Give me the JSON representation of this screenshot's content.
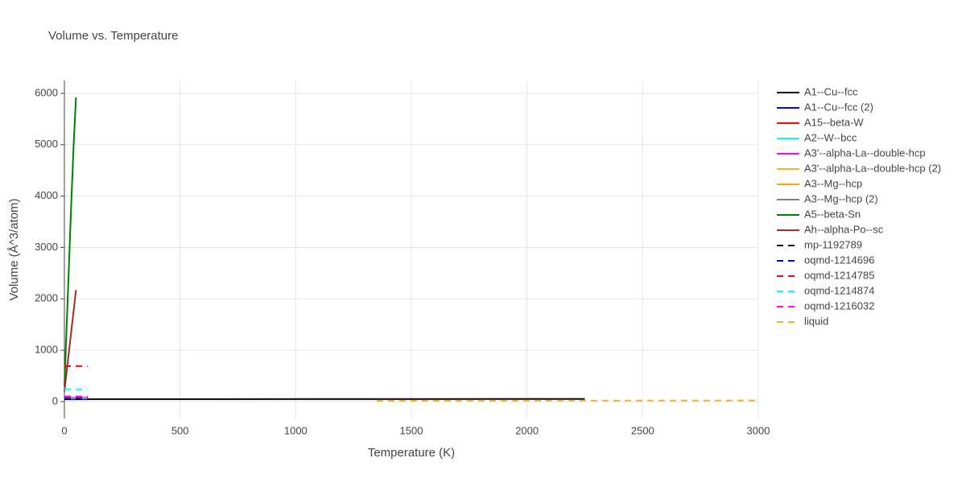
{
  "chart_data": {
    "type": "line",
    "title": "Volume vs. Temperature",
    "xlabel": "Temperature (K)",
    "ylabel": "Volume (Å^3/atom)",
    "xlim": [
      0,
      3000
    ],
    "xticks": [
      0,
      500,
      1000,
      1500,
      2000,
      2500,
      3000
    ],
    "ylim": [
      -330,
      6250
    ],
    "yticks": [
      0,
      1000,
      2000,
      3000,
      4000,
      5000,
      6000
    ],
    "grid": true,
    "legend": "right",
    "series": [
      {
        "name": "A1--Cu--fcc",
        "color": "#000000",
        "dash": false,
        "x": [
          0,
          2250
        ],
        "values": [
          47,
          52
        ]
      },
      {
        "name": "A1--Cu--fcc (2)",
        "color": "#0000ff",
        "dash": false,
        "x": [
          0,
          100
        ],
        "values": [
          45,
          46
        ]
      },
      {
        "name": "A15--beta-W",
        "color": "#ff0000",
        "dash": false,
        "x": [
          0,
          100
        ],
        "values": [
          70,
          71
        ]
      },
      {
        "name": "A2--W--bcc",
        "color": "#00ffff",
        "dash": false,
        "x": [
          0,
          100
        ],
        "values": [
          60,
          61
        ]
      },
      {
        "name": "A3'--alpha-La--double-hcp",
        "color": "#ff00ff",
        "dash": false,
        "x": [
          0,
          100
        ],
        "values": [
          80,
          81
        ]
      },
      {
        "name": "A3'--alpha-La--double-hcp (2)",
        "color": "#f0b429",
        "dash": false,
        "x": [
          0,
          100
        ],
        "values": [
          75,
          76
        ]
      },
      {
        "name": "A3--Mg--hcp",
        "color": "#ffa500",
        "dash": false,
        "x": [
          0,
          100
        ],
        "values": [
          65,
          66
        ]
      },
      {
        "name": "A3--Mg--hcp (2)",
        "color": "#808080",
        "dash": false,
        "x": [
          0,
          100
        ],
        "values": [
          66,
          67
        ]
      },
      {
        "name": "A5--beta-Sn",
        "color": "#008000",
        "dash": false,
        "x": [
          0,
          10,
          20,
          30,
          40,
          50
        ],
        "values": [
          300,
          1500,
          2700,
          3900,
          5000,
          5920
        ]
      },
      {
        "name": "Ah--alpha-Po--sc",
        "color": "#a52a2a",
        "dash": false,
        "x": [
          0,
          50
        ],
        "values": [
          200,
          2170
        ]
      },
      {
        "name": "mp-1192789",
        "color": "#000000",
        "dash": true,
        "x": [
          0,
          100
        ],
        "values": [
          50,
          51
        ]
      },
      {
        "name": "oqmd-1214696",
        "color": "#0000ff",
        "dash": true,
        "x": [
          0,
          100
        ],
        "values": [
          90,
          91
        ]
      },
      {
        "name": "oqmd-1214785",
        "color": "#ff0000",
        "dash": true,
        "x": [
          0,
          100
        ],
        "values": [
          690,
          690
        ]
      },
      {
        "name": "oqmd-1214874",
        "color": "#00ffff",
        "dash": true,
        "x": [
          0,
          100
        ],
        "values": [
          240,
          240
        ]
      },
      {
        "name": "oqmd-1216032",
        "color": "#ff00ff",
        "dash": true,
        "x": [
          0,
          100
        ],
        "values": [
          100,
          100
        ]
      },
      {
        "name": "liquid",
        "color": "#f0b429",
        "dash": true,
        "x": [
          1350,
          3000
        ],
        "values": [
          15,
          22
        ]
      }
    ]
  }
}
